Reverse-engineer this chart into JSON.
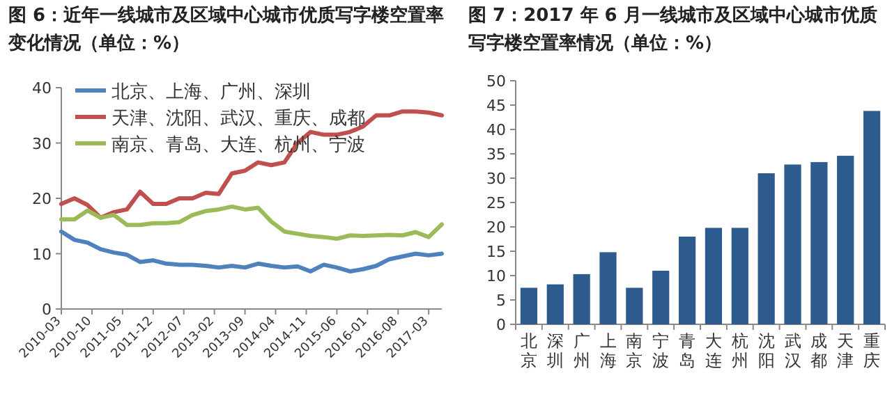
{
  "chart_data": [
    {
      "type": "line",
      "title": "图 6：近年一线城市及区域中心城市优质写字楼空置率变化情况（单位：%）",
      "x": [
        "2010-03",
        "2010-06",
        "2010-09",
        "2010-12",
        "2011-03",
        "2011-06",
        "2011-09",
        "2011-12",
        "2012-03",
        "2012-06",
        "2012-09",
        "2012-12",
        "2013-03",
        "2013-06",
        "2013-09",
        "2013-12",
        "2014-03",
        "2014-06",
        "2014-09",
        "2014-12",
        "2015-03",
        "2015-06",
        "2015-09",
        "2015-12",
        "2016-03",
        "2016-06",
        "2016-09",
        "2016-12",
        "2017-03",
        "2017-06"
      ],
      "series": [
        {
          "name": "北京、上海、广州、深圳",
          "color": "#4f81bd",
          "values": [
            14,
            12.5,
            12,
            10.8,
            10.2,
            9.8,
            8.5,
            8.8,
            8.2,
            8,
            8,
            7.8,
            7.5,
            7.8,
            7.5,
            8.2,
            7.8,
            7.5,
            7.7,
            6.8,
            8,
            7.5,
            6.8,
            7.2,
            7.8,
            9,
            9.5,
            10,
            9.7,
            10
          ]
        },
        {
          "name": "天津、沈阳、武汉、重庆、成都",
          "color": "#c0504d",
          "values": [
            19,
            20,
            18.8,
            16.5,
            17.5,
            18,
            21.2,
            19,
            19,
            20,
            20,
            21,
            20.8,
            24.5,
            25,
            26.5,
            26,
            26.5,
            30,
            32,
            31.5,
            31.5,
            32,
            33,
            35,
            35,
            35.7,
            35.7,
            35.5,
            35
          ]
        },
        {
          "name": "南京、青岛、大连、杭州、宁波",
          "color": "#9bbb59",
          "values": [
            16.2,
            16.2,
            17.8,
            16.5,
            17,
            15.2,
            15.2,
            15.5,
            15.5,
            15.7,
            17,
            17.7,
            18,
            18.5,
            18,
            18.3,
            15.8,
            14,
            13.6,
            13.2,
            13,
            12.7,
            13.3,
            13.2,
            13.3,
            13.4,
            13.3,
            13.9,
            13,
            15.3
          ]
        }
      ],
      "xlim": [
        "2010-03",
        "2017-06"
      ],
      "xticks": [
        "2010-03",
        "2010-10",
        "2011-05",
        "2011-12",
        "2012-07",
        "2013-02",
        "2013-09",
        "2014-04",
        "2014-11",
        "2015-06",
        "2016-01",
        "2016-08",
        "2017-03"
      ],
      "ylim": [
        0,
        40
      ],
      "yticks": [
        0,
        10,
        20,
        30,
        40
      ],
      "legend": "top left",
      "grid": false
    },
    {
      "type": "bar",
      "title": "图 7：2017 年 6 月一线城市及区域中心城市优质写字楼空置率情况（单位：%）",
      "categories": [
        "北京",
        "深圳",
        "广州",
        "上海",
        "南京",
        "宁波",
        "青岛",
        "大连",
        "杭州",
        "沈阳",
        "武汉",
        "成都",
        "天津",
        "重庆"
      ],
      "values": [
        7.5,
        8.2,
        10.3,
        14.8,
        7.5,
        11,
        18,
        19.8,
        19.8,
        31,
        32.8,
        33.3,
        34.6,
        43.8
      ],
      "color": "#2e5b8e",
      "ylim": [
        0,
        50
      ],
      "yticks": [
        0,
        5,
        10,
        15,
        20,
        25,
        30,
        35,
        40,
        45,
        50
      ],
      "grid": false
    }
  ]
}
